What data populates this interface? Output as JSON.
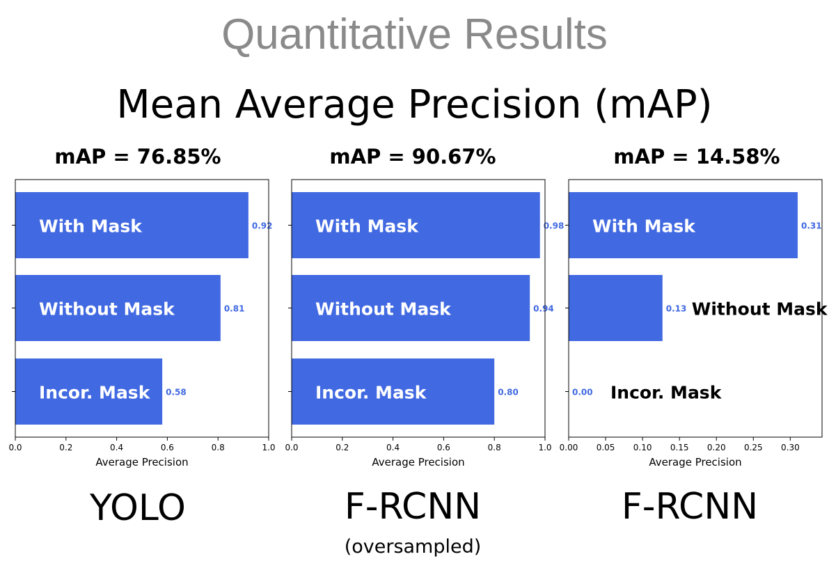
{
  "slide": {
    "title": "Quantitative Results",
    "subtitle": "Mean Average Precision (mAP)"
  },
  "panels": [
    {
      "map_label": "mAP = 76.85%",
      "model": "YOLO",
      "note": ""
    },
    {
      "map_label": "mAP = 90.67%",
      "model": "F-RCNN",
      "note": "(oversampled)"
    },
    {
      "map_label": "mAP = 14.58%",
      "model": "F-RCNN",
      "note": ""
    }
  ],
  "colors": {
    "bar": "#4169e1",
    "value_label": "#4169e1"
  },
  "chart_data": [
    {
      "type": "bar",
      "orientation": "horizontal",
      "categories": [
        "With Mask",
        "Without Mask",
        "Incor. Mask"
      ],
      "values": [
        0.92,
        0.81,
        0.58
      ],
      "value_labels": [
        "0.92",
        "0.81",
        "0.58"
      ],
      "xlabel": "Average Precision",
      "xlim": [
        0.0,
        1.0
      ],
      "xticks": [
        "0.0",
        "0.2",
        "0.4",
        "0.6",
        "0.8",
        "1.0"
      ],
      "category_label_placement": [
        "inside",
        "inside",
        "inside"
      ]
    },
    {
      "type": "bar",
      "orientation": "horizontal",
      "categories": [
        "With Mask",
        "Without Mask",
        "Incor. Mask"
      ],
      "values": [
        0.98,
        0.94,
        0.8
      ],
      "value_labels": [
        "0.98",
        "0.94",
        "0.80"
      ],
      "xlabel": "Average Precision",
      "xlim": [
        0.0,
        1.0
      ],
      "xticks": [
        "0.0",
        "0.2",
        "0.4",
        "0.6",
        "0.8",
        "1.0"
      ],
      "category_label_placement": [
        "inside",
        "inside",
        "inside"
      ]
    },
    {
      "type": "bar",
      "orientation": "horizontal",
      "categories": [
        "With Mask",
        "Without Mask",
        "Incor. Mask"
      ],
      "values": [
        0.31,
        0.127,
        0.0
      ],
      "value_labels": [
        "0.31",
        "0.13",
        "0.00"
      ],
      "xlabel": "Average Precision",
      "xlim": [
        0.0,
        0.343
      ],
      "xticks": [
        "0.00",
        "0.05",
        "0.10",
        "0.15",
        "0.20",
        "0.25",
        "0.30"
      ],
      "xtick_values": [
        0.0,
        0.05,
        0.1,
        0.15,
        0.2,
        0.25,
        0.3
      ],
      "category_label_placement": [
        "inside",
        "outside",
        "outside"
      ]
    }
  ]
}
